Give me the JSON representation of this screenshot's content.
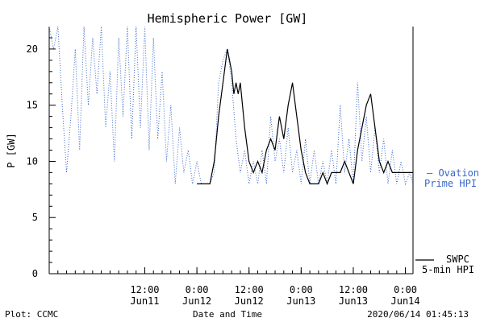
{
  "chart_data": {
    "type": "line",
    "title": "Hemispheric Power [GW]",
    "xlabel": "Date and Time",
    "ylabel": "P [GW]",
    "ylim": [
      0,
      22
    ],
    "xlim": [
      "2020-06-10T14:00",
      "2020-06-14T01:45"
    ],
    "yticks": [
      0,
      5,
      10,
      15,
      20
    ],
    "xticks": [
      {
        "x": "2020-06-11T12:00",
        "time": "12:00",
        "date": "Jun11"
      },
      {
        "x": "2020-06-12T00:00",
        "time": "0:00",
        "date": "Jun12"
      },
      {
        "x": "2020-06-12T12:00",
        "time": "12:00",
        "date": "Jun12"
      },
      {
        "x": "2020-06-13T00:00",
        "time": "0:00",
        "date": "Jun13"
      },
      {
        "x": "2020-06-13T12:00",
        "time": "12:00",
        "date": "Jun13"
      },
      {
        "x": "2020-06-14T00:00",
        "time": "0:00",
        "date": "Jun14"
      }
    ],
    "series": [
      {
        "name": "Ovation Prime HPI",
        "style": "dotted",
        "color": "#3a67c8",
        "points": [
          [
            "2020-06-10T14:00",
            22
          ],
          [
            "2020-06-10T15:00",
            20
          ],
          [
            "2020-06-10T16:00",
            22
          ],
          [
            "2020-06-10T17:00",
            15
          ],
          [
            "2020-06-10T18:00",
            9
          ],
          [
            "2020-06-10T19:00",
            14
          ],
          [
            "2020-06-10T20:00",
            20
          ],
          [
            "2020-06-10T21:00",
            11
          ],
          [
            "2020-06-10T22:00",
            22
          ],
          [
            "2020-06-10T23:00",
            15
          ],
          [
            "2020-06-11T00:00",
            21
          ],
          [
            "2020-06-11T01:00",
            16
          ],
          [
            "2020-06-11T02:00",
            22
          ],
          [
            "2020-06-11T03:00",
            13
          ],
          [
            "2020-06-11T04:00",
            18
          ],
          [
            "2020-06-11T05:00",
            10
          ],
          [
            "2020-06-11T06:00",
            21
          ],
          [
            "2020-06-11T07:00",
            14
          ],
          [
            "2020-06-11T08:00",
            22
          ],
          [
            "2020-06-11T09:00",
            12
          ],
          [
            "2020-06-11T10:00",
            22
          ],
          [
            "2020-06-11T11:00",
            13
          ],
          [
            "2020-06-11T12:00",
            22
          ],
          [
            "2020-06-11T13:00",
            11
          ],
          [
            "2020-06-11T14:00",
            21
          ],
          [
            "2020-06-11T15:00",
            12
          ],
          [
            "2020-06-11T16:00",
            18
          ],
          [
            "2020-06-11T17:00",
            10
          ],
          [
            "2020-06-11T18:00",
            15
          ],
          [
            "2020-06-11T19:00",
            8
          ],
          [
            "2020-06-11T20:00",
            13
          ],
          [
            "2020-06-11T21:00",
            9
          ],
          [
            "2020-06-11T22:00",
            11
          ],
          [
            "2020-06-11T23:00",
            8
          ],
          [
            "2020-06-12T00:00",
            10
          ],
          [
            "2020-06-12T01:00",
            8
          ],
          [
            "2020-06-12T02:00",
            8
          ],
          [
            "2020-06-12T03:00",
            8
          ],
          [
            "2020-06-12T04:00",
            9
          ],
          [
            "2020-06-12T05:00",
            17
          ],
          [
            "2020-06-12T06:00",
            19
          ],
          [
            "2020-06-12T07:00",
            20
          ],
          [
            "2020-06-12T08:00",
            17
          ],
          [
            "2020-06-12T09:00",
            12
          ],
          [
            "2020-06-12T10:00",
            9
          ],
          [
            "2020-06-12T11:00",
            11
          ],
          [
            "2020-06-12T12:00",
            8
          ],
          [
            "2020-06-12T13:00",
            10
          ],
          [
            "2020-06-12T14:00",
            8
          ],
          [
            "2020-06-12T15:00",
            11
          ],
          [
            "2020-06-12T16:00",
            8
          ],
          [
            "2020-06-12T17:00",
            14
          ],
          [
            "2020-06-12T18:00",
            10
          ],
          [
            "2020-06-12T19:00",
            12
          ],
          [
            "2020-06-12T20:00",
            9
          ],
          [
            "2020-06-12T21:00",
            13
          ],
          [
            "2020-06-12T22:00",
            9
          ],
          [
            "2020-06-12T23:00",
            11
          ],
          [
            "2020-06-13T00:00",
            8
          ],
          [
            "2020-06-13T01:00",
            12
          ],
          [
            "2020-06-13T02:00",
            8
          ],
          [
            "2020-06-13T03:00",
            11
          ],
          [
            "2020-06-13T04:00",
            8
          ],
          [
            "2020-06-13T05:00",
            10
          ],
          [
            "2020-06-13T06:00",
            8
          ],
          [
            "2020-06-13T07:00",
            11
          ],
          [
            "2020-06-13T08:00",
            8
          ],
          [
            "2020-06-13T09:00",
            15
          ],
          [
            "2020-06-13T10:00",
            9
          ],
          [
            "2020-06-13T11:00",
            12
          ],
          [
            "2020-06-13T12:00",
            8
          ],
          [
            "2020-06-13T13:00",
            17
          ],
          [
            "2020-06-13T14:00",
            10
          ],
          [
            "2020-06-13T15:00",
            14
          ],
          [
            "2020-06-13T16:00",
            9
          ],
          [
            "2020-06-13T17:00",
            13
          ],
          [
            "2020-06-13T18:00",
            9
          ],
          [
            "2020-06-13T19:00",
            12
          ],
          [
            "2020-06-13T20:00",
            8
          ],
          [
            "2020-06-13T21:00",
            11
          ],
          [
            "2020-06-13T22:00",
            8
          ],
          [
            "2020-06-13T23:00",
            10
          ],
          [
            "2020-06-14T00:00",
            8
          ],
          [
            "2020-06-14T01:00",
            9
          ],
          [
            "2020-06-14T01:45",
            8
          ]
        ]
      },
      {
        "name": "SWPC 5-min HPI",
        "style": "solid",
        "color": "#000000",
        "points": [
          [
            "2020-06-12T00:00",
            8
          ],
          [
            "2020-06-12T03:00",
            8
          ],
          [
            "2020-06-12T04:00",
            10
          ],
          [
            "2020-06-12T05:00",
            14
          ],
          [
            "2020-06-12T06:00",
            17
          ],
          [
            "2020-06-12T07:00",
            20
          ],
          [
            "2020-06-12T08:00",
            18
          ],
          [
            "2020-06-12T08:30",
            16
          ],
          [
            "2020-06-12T09:00",
            17
          ],
          [
            "2020-06-12T09:30",
            16
          ],
          [
            "2020-06-12T10:00",
            17
          ],
          [
            "2020-06-12T11:00",
            13
          ],
          [
            "2020-06-12T12:00",
            10
          ],
          [
            "2020-06-12T13:00",
            9
          ],
          [
            "2020-06-12T14:00",
            10
          ],
          [
            "2020-06-12T15:00",
            9
          ],
          [
            "2020-06-12T16:00",
            11
          ],
          [
            "2020-06-12T17:00",
            12
          ],
          [
            "2020-06-12T18:00",
            11
          ],
          [
            "2020-06-12T19:00",
            14
          ],
          [
            "2020-06-12T20:00",
            12
          ],
          [
            "2020-06-12T21:00",
            15
          ],
          [
            "2020-06-12T22:00",
            17
          ],
          [
            "2020-06-12T23:00",
            14
          ],
          [
            "2020-06-13T00:00",
            11
          ],
          [
            "2020-06-13T01:00",
            9
          ],
          [
            "2020-06-13T02:00",
            8
          ],
          [
            "2020-06-13T04:00",
            8
          ],
          [
            "2020-06-13T05:00",
            9
          ],
          [
            "2020-06-13T06:00",
            8
          ],
          [
            "2020-06-13T07:00",
            9
          ],
          [
            "2020-06-13T09:00",
            9
          ],
          [
            "2020-06-13T10:00",
            10
          ],
          [
            "2020-06-13T11:00",
            9
          ],
          [
            "2020-06-13T12:00",
            8
          ],
          [
            "2020-06-13T13:00",
            11
          ],
          [
            "2020-06-13T14:00",
            13
          ],
          [
            "2020-06-13T15:00",
            15
          ],
          [
            "2020-06-13T16:00",
            16
          ],
          [
            "2020-06-13T17:00",
            13
          ],
          [
            "2020-06-13T18:00",
            10
          ],
          [
            "2020-06-13T19:00",
            9
          ],
          [
            "2020-06-13T20:00",
            10
          ],
          [
            "2020-06-13T21:00",
            9
          ],
          [
            "2020-06-14T01:45",
            9
          ]
        ]
      }
    ],
    "legend": [
      {
        "text": "– Ovation",
        "color": "#3a67c8"
      },
      {
        "text": "Prime HPI",
        "color": "#3a67c8"
      },
      {
        "text": "SWPC",
        "color": "#000000"
      },
      {
        "text": "5-min HPI",
        "color": "#000000"
      }
    ],
    "footer": {
      "left": "Plot: CCMC",
      "right": "2020/06/14 01:45:13"
    }
  }
}
